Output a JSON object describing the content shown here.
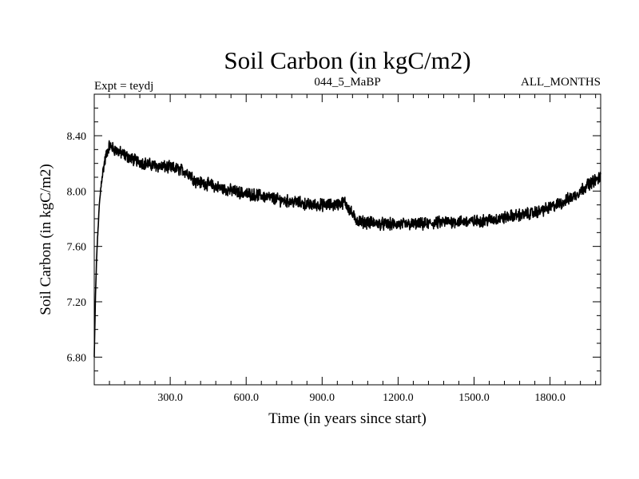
{
  "chart_data": {
    "type": "line",
    "title": "Soil Carbon (in kgC/m2)",
    "subtitle_left": "Expt = teydj",
    "subtitle_center": "044_5_MaBP",
    "subtitle_right": "ALL_MONTHS",
    "xlabel": "Time (in years since start)",
    "ylabel": "Soil Carbon (in kgC/m2)",
    "xlim": [
      0,
      2000
    ],
    "ylim": [
      6.6,
      8.7
    ],
    "xticks": [
      300,
      600,
      900,
      1200,
      1500,
      1800
    ],
    "xtick_labels": [
      "300.0",
      "600.0",
      "900.0",
      "1200.0",
      "1500.0",
      "1800.0"
    ],
    "yticks": [
      6.8,
      7.2,
      7.6,
      8.0,
      8.4
    ],
    "ytick_labels": [
      "6.80",
      "7.20",
      "7.60",
      "8.00",
      "8.40"
    ],
    "grid": false,
    "series": [
      {
        "name": "soil_carbon",
        "color": "#000000",
        "noise_amplitude": 0.035,
        "x": [
          0,
          5,
          10,
          20,
          30,
          40,
          50,
          60,
          80,
          100,
          150,
          200,
          250,
          300,
          350,
          380,
          400,
          450,
          500,
          550,
          600,
          650,
          700,
          750,
          800,
          850,
          900,
          950,
          990,
          1010,
          1030,
          1050,
          1100,
          1150,
          1200,
          1250,
          1300,
          1350,
          1400,
          1450,
          1500,
          1550,
          1600,
          1650,
          1700,
          1750,
          1800,
          1850,
          1900,
          1950,
          2000
        ],
        "y": [
          6.8,
          7.25,
          7.55,
          7.9,
          8.1,
          8.2,
          8.28,
          8.33,
          8.3,
          8.28,
          8.23,
          8.2,
          8.18,
          8.17,
          8.15,
          8.12,
          8.07,
          8.05,
          8.02,
          8.0,
          7.98,
          7.97,
          7.95,
          7.93,
          7.92,
          7.9,
          7.9,
          7.9,
          7.92,
          7.86,
          7.8,
          7.78,
          7.77,
          7.76,
          7.76,
          7.76,
          7.76,
          7.77,
          7.78,
          7.78,
          7.78,
          7.79,
          7.8,
          7.82,
          7.83,
          7.85,
          7.88,
          7.92,
          7.97,
          8.05,
          8.1
        ]
      }
    ]
  }
}
